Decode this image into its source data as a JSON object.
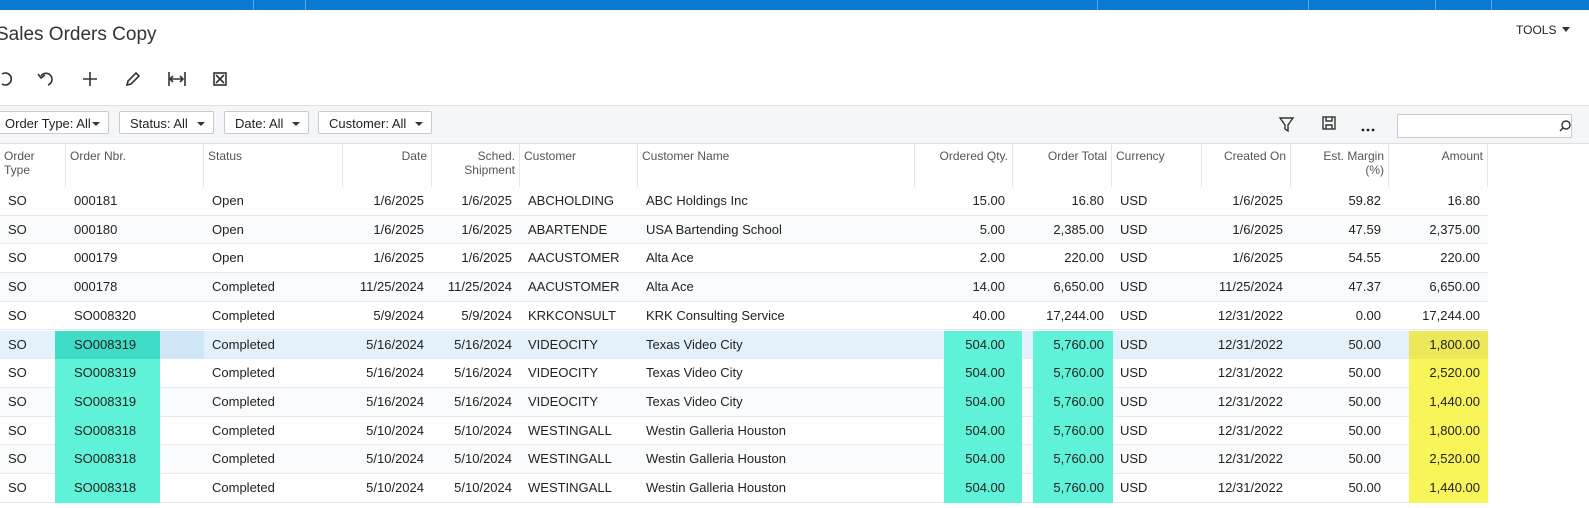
{
  "header": {
    "title": "Sales Orders Copy",
    "tools": "TOOLS"
  },
  "filters": [
    "Order Type: All",
    "Status: All",
    "Date: All",
    "Customer: All"
  ],
  "table": {
    "columns": [
      "Order Type",
      "Order Nbr.",
      "Status",
      "Date",
      "Sched. Shipment",
      "Customer",
      "Customer Name",
      "Ordered Qty.",
      "Order Total",
      "Currency",
      "Created On",
      "Est. Margin (%)",
      "Amount"
    ],
    "rows": [
      [
        "SO",
        "000181",
        "Open",
        "1/6/2025",
        "1/6/2025",
        "ABCHOLDING",
        "ABC Holdings Inc",
        "15.00",
        "16.80",
        "USD",
        "1/6/2025",
        "59.82",
        "16.80"
      ],
      [
        "SO",
        "000180",
        "Open",
        "1/6/2025",
        "1/6/2025",
        "ABARTENDE",
        "USA Bartending School",
        "5.00",
        "2,385.00",
        "USD",
        "1/6/2025",
        "47.59",
        "2,375.00"
      ],
      [
        "SO",
        "000179",
        "Open",
        "1/6/2025",
        "1/6/2025",
        "AACUSTOMER",
        "Alta Ace",
        "2.00",
        "220.00",
        "USD",
        "1/6/2025",
        "54.55",
        "220.00"
      ],
      [
        "SO",
        "000178",
        "Completed",
        "11/25/2024",
        "11/25/2024",
        "AACUSTOMER",
        "Alta Ace",
        "14.00",
        "6,650.00",
        "USD",
        "11/25/2024",
        "47.37",
        "6,650.00"
      ],
      [
        "SO",
        "SO008320",
        "Completed",
        "5/9/2024",
        "5/9/2024",
        "KRKCONSULT",
        "KRK Consulting Service",
        "40.00",
        "17,244.00",
        "USD",
        "12/31/2022",
        "0.00",
        "17,244.00"
      ],
      [
        "SO",
        "SO008319",
        "Completed",
        "5/16/2024",
        "5/16/2024",
        "VIDEOCITY",
        "Texas Video City",
        "504.00",
        "5,760.00",
        "USD",
        "12/31/2022",
        "50.00",
        "1,800.00"
      ],
      [
        "SO",
        "SO008319",
        "Completed",
        "5/16/2024",
        "5/16/2024",
        "VIDEOCITY",
        "Texas Video City",
        "504.00",
        "5,760.00",
        "USD",
        "12/31/2022",
        "50.00",
        "2,520.00"
      ],
      [
        "SO",
        "SO008319",
        "Completed",
        "5/16/2024",
        "5/16/2024",
        "VIDEOCITY",
        "Texas Video City",
        "504.00",
        "5,760.00",
        "USD",
        "12/31/2022",
        "50.00",
        "1,440.00"
      ],
      [
        "SO",
        "SO008318",
        "Completed",
        "5/10/2024",
        "5/10/2024",
        "WESTINGALL",
        "Westin Galleria Houston",
        "504.00",
        "5,760.00",
        "USD",
        "12/31/2022",
        "50.00",
        "1,800.00"
      ],
      [
        "SO",
        "SO008318",
        "Completed",
        "5/10/2024",
        "5/10/2024",
        "WESTINGALL",
        "Westin Galleria Houston",
        "504.00",
        "5,760.00",
        "USD",
        "12/31/2022",
        "50.00",
        "2,520.00"
      ],
      [
        "SO",
        "SO008318",
        "Completed",
        "5/10/2024",
        "5/10/2024",
        "WESTINGALL",
        "Westin Galleria Houston",
        "504.00",
        "5,760.00",
        "USD",
        "12/31/2022",
        "50.00",
        "1,440.00"
      ]
    ]
  }
}
